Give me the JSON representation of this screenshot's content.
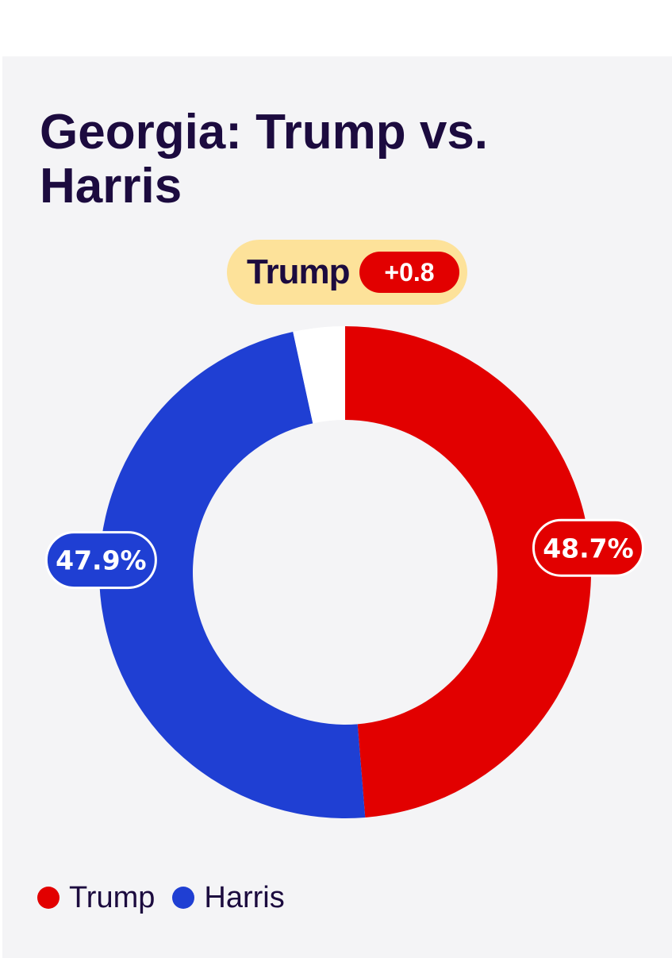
{
  "title": "Georgia: Trump vs. Harris",
  "leader": {
    "name": "Trump",
    "margin": "+0.8",
    "pill_color": "#fde29a",
    "badge_color": "#e20000"
  },
  "chart_data": {
    "type": "pie",
    "title": "Georgia: Trump vs. Harris",
    "donut": true,
    "start": "top",
    "direction": "clockwise",
    "series": [
      {
        "name": "Trump",
        "value": 48.7,
        "label": "48.7%",
        "color": "#e20000"
      },
      {
        "name": "Harris",
        "value": 47.9,
        "label": "47.9%",
        "color": "#1f3fd3"
      },
      {
        "name": "",
        "value": 3.4,
        "label": "",
        "color": "#ffffff"
      }
    ],
    "legend_position": "bottom-left"
  },
  "legend": [
    {
      "label": "Trump",
      "color": "#e20000"
    },
    {
      "label": "Harris",
      "color": "#1f3fd3"
    }
  ]
}
